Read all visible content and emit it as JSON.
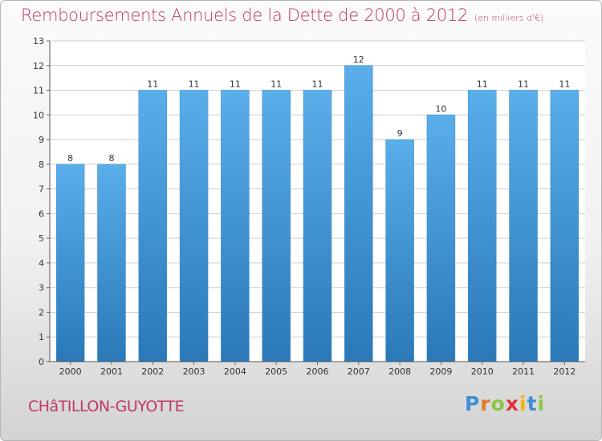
{
  "chart_data": {
    "type": "bar",
    "title": "Remboursements Annuels de la Dette de 2000 à 2012",
    "subtitle": "(en milliers d'€)",
    "categories": [
      "2000",
      "2001",
      "2002",
      "2003",
      "2004",
      "2005",
      "2006",
      "2007",
      "2008",
      "2009",
      "2010",
      "2011",
      "2012"
    ],
    "values": [
      8,
      8,
      11,
      11,
      11,
      11,
      11,
      12,
      9,
      10,
      11,
      11,
      11
    ],
    "xlabel": "",
    "ylabel": "",
    "ylim": [
      0,
      13
    ],
    "yticks": [
      0,
      1,
      2,
      3,
      4,
      5,
      6,
      7,
      8,
      9,
      10,
      11,
      12,
      13
    ],
    "grid": true,
    "bar_color": "#4a9fe0"
  },
  "footer": {
    "commune": "CHâTILLON-GUYOTTE",
    "logo_letters": [
      {
        "ch": "P",
        "color": "#3b8fd4"
      },
      {
        "ch": "r",
        "color": "#e07a26"
      },
      {
        "ch": "o",
        "color": "#8cc63f"
      },
      {
        "ch": "x",
        "color": "#e0323c"
      },
      {
        "ch": "i",
        "color": "#f2b705"
      },
      {
        "ch": "t",
        "color": "#3b8fd4"
      },
      {
        "ch": "i",
        "color": "#8cc63f"
      }
    ]
  }
}
